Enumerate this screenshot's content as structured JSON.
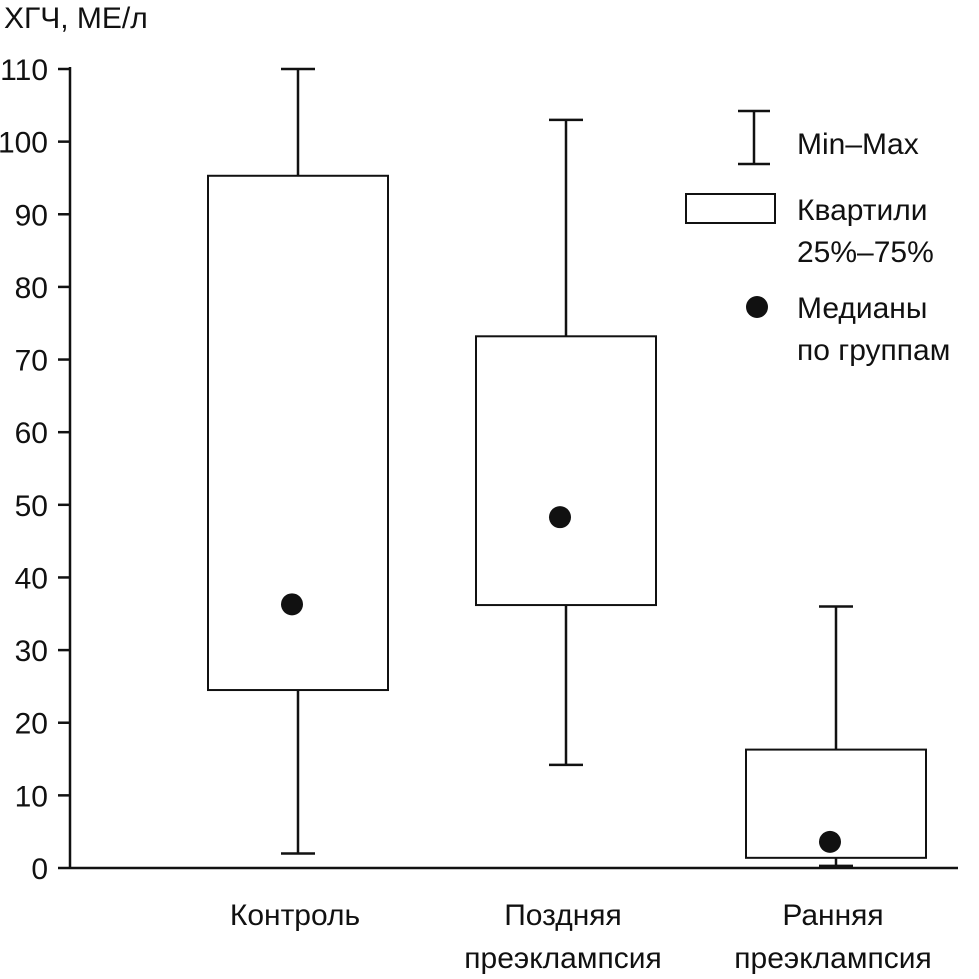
{
  "chart_data": {
    "type": "boxplot",
    "ylabel": "ХГЧ, МЕ/л",
    "xlabel": "",
    "ylim": [
      0,
      110
    ],
    "yticks": [
      0,
      10,
      20,
      30,
      40,
      50,
      60,
      70,
      80,
      90,
      100,
      110
    ],
    "grid": false,
    "legend_position": "top-right",
    "categories": [
      {
        "line1": "Контроль",
        "line2": ""
      },
      {
        "line1": "Поздняя",
        "line2": "преэклампсия"
      },
      {
        "line1": "Ранняя",
        "line2": "преэклампсия"
      }
    ],
    "groups": [
      {
        "min": 2,
        "q1": 24.5,
        "median": 36.3,
        "q3": 95.3,
        "max": 110
      },
      {
        "min": 14.2,
        "q1": 36.2,
        "median": 48.3,
        "q3": 73.2,
        "max": 103
      },
      {
        "min": 0.3,
        "q1": 1.4,
        "median": 3.6,
        "q3": 16.3,
        "max": 36
      }
    ],
    "legend": {
      "minmax": "Min–Max",
      "quartiles_line1": "Квартили",
      "quartiles_line2": "25%–75%",
      "median_line1": "Медианы",
      "median_line2": "по группам"
    },
    "colors": {
      "ink": "#111111",
      "box_fill": "#ffffff",
      "background": "#ffffff"
    }
  }
}
